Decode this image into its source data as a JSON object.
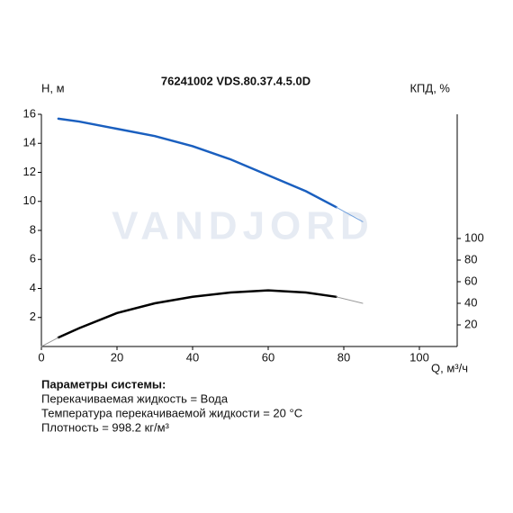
{
  "chart_data": {
    "type": "line",
    "title": "76241002 VDS.80.37.4.5.0D",
    "ylabel": "H, м",
    "y2label": "КПД, %",
    "xlabel": "Q, м³/ч",
    "watermark": "VANDJORD",
    "xlim": [
      0,
      110
    ],
    "xticks": [
      0,
      20,
      40,
      60,
      80,
      100
    ],
    "ylim": [
      0,
      16
    ],
    "yticks": [
      2,
      4,
      6,
      8,
      10,
      12,
      14,
      16
    ],
    "y2lim": [
      0,
      215
    ],
    "y2ticks": [
      20,
      40,
      60,
      80,
      100
    ],
    "series": [
      {
        "color": "#1a5fbf",
        "width": 2.5,
        "x": [
          4.5,
          10,
          20,
          30,
          40,
          50,
          60,
          70,
          78
        ],
        "values": [
          15.7,
          15.5,
          15.0,
          14.5,
          13.8,
          12.9,
          11.8,
          10.7,
          9.6
        ]
      },
      {
        "color": "#6f9fdc",
        "width": 1,
        "x": [
          78,
          85
        ],
        "values": [
          9.6,
          8.6
        ]
      },
      {
        "color": "#000000",
        "width": 2.5,
        "axis": "y2",
        "x": [
          4.5,
          10,
          20,
          30,
          40,
          50,
          60,
          70,
          78
        ],
        "values": [
          8.3,
          17,
          31,
          40,
          46,
          50,
          52,
          50,
          46
        ]
      },
      {
        "color": "#999999",
        "width": 1,
        "axis": "y2",
        "x": [
          78,
          85
        ],
        "values": [
          46,
          40
        ]
      },
      {
        "color": "#999999",
        "width": 1,
        "axis": "y2",
        "x": [
          0,
          4.5
        ],
        "values": [
          0,
          8.3
        ]
      }
    ]
  },
  "notes": {
    "heading": "Параметры системы:",
    "lines": [
      "Перекачиваемая жидкость = Вода",
      "Температура перекачиваемой жидкости = 20 °C",
      "Плотность = 998.2 кг/м³"
    ]
  }
}
